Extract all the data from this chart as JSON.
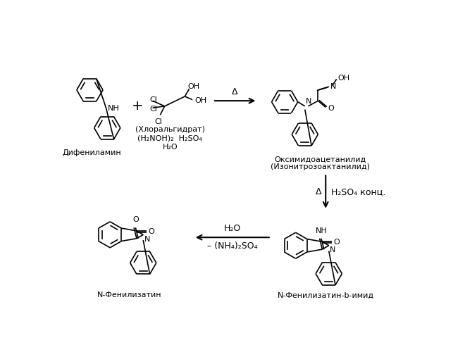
{
  "background_color": "#ffffff",
  "text_color": "#000000",
  "line_color": "#000000",
  "figsize": [
    6.6,
    5.0
  ],
  "dpi": 100,
  "labels": {
    "diphenylamine": "Дифениламин",
    "chloral_hydrate": "(Хлоральгидрат)",
    "reagents": "(H₂NOH)₂  H₂SO₄",
    "water": "H₂O",
    "oximido": "Оксимидоацетанилид",
    "isonitro": "(Изонитрозоактанилид)",
    "h2so4_conc": "H₂SO₄ конц.",
    "delta": "Δ",
    "h2o_label": "H₂O",
    "nh4so4": "– (NH₄)₂SO₄",
    "isatin": "N-Фенилизатин",
    "isatin_imid": "N-Фенилизатин-b-имид"
  }
}
